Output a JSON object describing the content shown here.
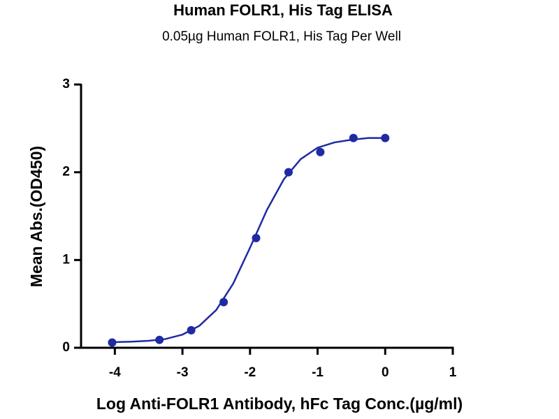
{
  "chart_data": {
    "type": "scatter",
    "title": "Human FOLR1, His Tag ELISA",
    "subtitle": "0.05µg Human FOLR1, His Tag Per Well",
    "x_label": "Log Anti-FOLR1 Antibody, hFc Tag Conc.(µg/ml)",
    "y_label": "Mean Abs.(OD450)",
    "xlim": [
      -4.5,
      1
    ],
    "xticks": [
      -4,
      -3,
      -2,
      -1,
      0,
      1
    ],
    "ylim": [
      0,
      3
    ],
    "yticks": [
      0,
      1,
      2,
      3
    ],
    "grid": false,
    "series": [
      {
        "color": "#1f2aa3",
        "style": "markers",
        "x": [
          -4.04,
          -3.34,
          -2.87,
          -2.39,
          -1.91,
          -1.43,
          -0.96,
          -0.47,
          0
        ],
        "values": [
          0.06,
          0.09,
          0.2,
          0.52,
          1.25,
          2.0,
          2.23,
          2.39,
          2.39
        ]
      },
      {
        "color": "#1f2aa3",
        "style": "line",
        "x": [
          -4.04,
          -3.75,
          -3.5,
          -3.25,
          -3.0,
          -2.75,
          -2.5,
          -2.25,
          -2.0,
          -1.75,
          -1.5,
          -1.25,
          -1.0,
          -0.75,
          -0.5,
          -0.25,
          0
        ],
        "values": [
          0.064,
          0.07,
          0.08,
          0.1,
          0.15,
          0.25,
          0.43,
          0.73,
          1.14,
          1.57,
          1.92,
          2.15,
          2.28,
          2.34,
          2.37,
          2.39,
          2.39
        ]
      }
    ]
  }
}
